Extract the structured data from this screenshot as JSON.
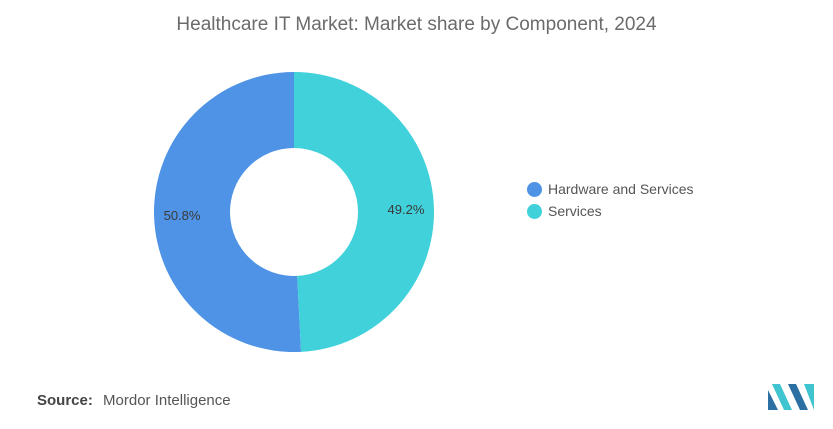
{
  "chart_data": {
    "type": "pie",
    "title": "Healthcare IT Market: Market share by Component, 2024",
    "donut": true,
    "categories": [
      "Hardware and Services",
      "Services"
    ],
    "values": [
      50.8,
      49.2
    ],
    "value_labels": [
      "50.8%",
      "49.2%"
    ],
    "colors": [
      "#4f93e6",
      "#40d1da"
    ],
    "legend_position": "right"
  },
  "source": {
    "label": "Source:",
    "text": "Mordor Intelligence"
  },
  "logo": {
    "icon": "mordor-intelligence-logo-icon",
    "colors": [
      "#2b6fa3",
      "#40c4d0"
    ]
  }
}
